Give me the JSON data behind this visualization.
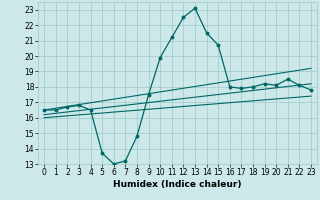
{
  "title": "",
  "xlabel": "Humidex (Indice chaleur)",
  "xlim": [
    -0.5,
    23.5
  ],
  "ylim": [
    13,
    23.5
  ],
  "yticks": [
    13,
    14,
    15,
    16,
    17,
    18,
    19,
    20,
    21,
    22,
    23
  ],
  "xticks": [
    0,
    1,
    2,
    3,
    4,
    5,
    6,
    7,
    8,
    9,
    10,
    11,
    12,
    13,
    14,
    15,
    16,
    17,
    18,
    19,
    20,
    21,
    22,
    23
  ],
  "main_line_x": [
    0,
    1,
    2,
    3,
    4,
    5,
    6,
    7,
    8,
    9,
    10,
    11,
    12,
    13,
    14,
    15,
    16,
    17,
    18,
    19,
    20,
    21,
    22,
    23
  ],
  "main_line_y": [
    16.5,
    16.5,
    16.7,
    16.8,
    16.5,
    13.7,
    13.0,
    13.2,
    14.8,
    17.5,
    19.9,
    21.2,
    22.5,
    23.1,
    21.5,
    20.7,
    18.0,
    17.9,
    18.0,
    18.2,
    18.1,
    18.5,
    18.1,
    17.8
  ],
  "upper_line_x": [
    0,
    23
  ],
  "upper_line_y": [
    16.5,
    19.2
  ],
  "lower_line_x": [
    0,
    23
  ],
  "lower_line_y": [
    16.0,
    17.4
  ],
  "mid_line_x": [
    0,
    23
  ],
  "mid_line_y": [
    16.2,
    18.2
  ],
  "line_color": "#006666",
  "bg_color": "#cce8e8",
  "grid_color": "#9dc8c8",
  "label_fontsize": 6.5,
  "tick_fontsize": 5.5
}
